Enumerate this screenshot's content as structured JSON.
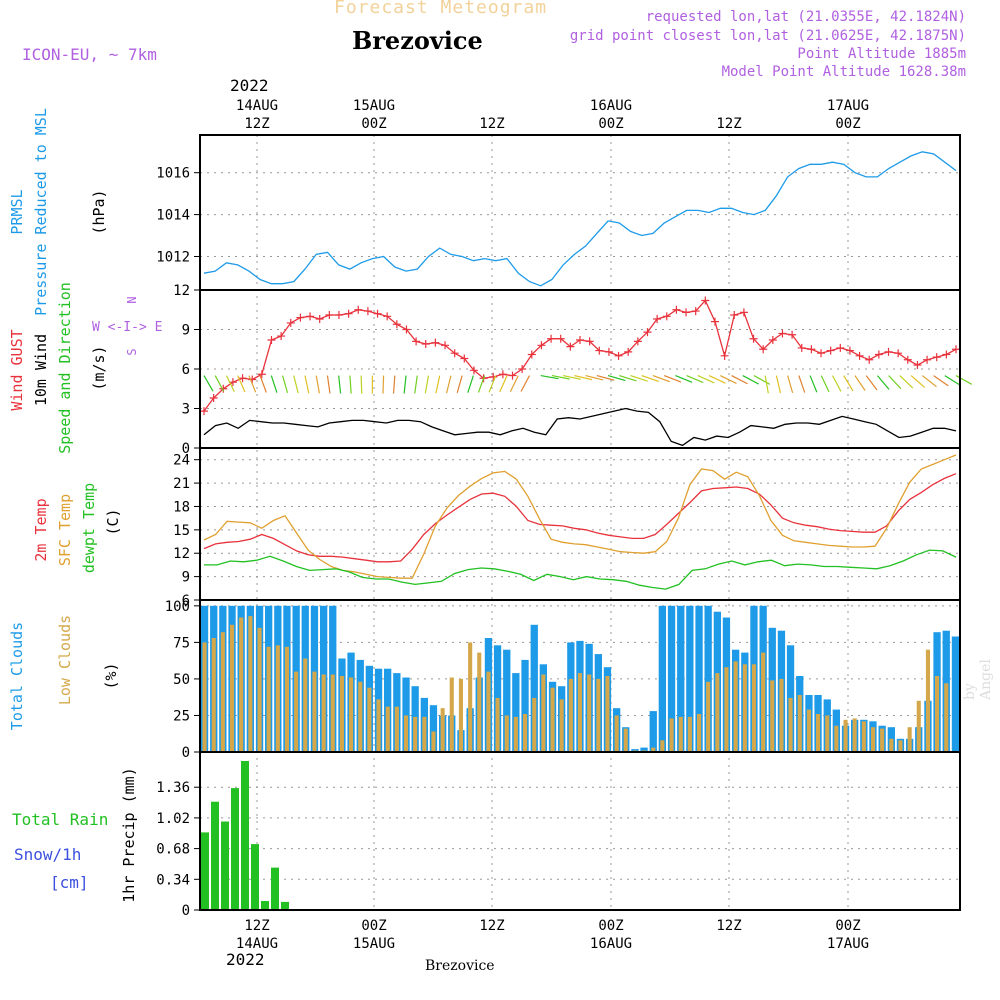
{
  "header": {
    "title_faded": "Forecast Meteogram",
    "location": "Brezovice",
    "model": "ICON-EU, ~ 7km",
    "requested": "requested lon,lat (21.0355E, 42.1824N)",
    "gridpoint": "grid point closest lon,lat (21.0625E, 42.1875N)",
    "point_alt": "Point Altitude 1885m",
    "model_alt": "Model Point Altitude 1628.38m",
    "watermark": "by Angel",
    "bottom_location": "Brezovice"
  },
  "time_axis": {
    "year": "2022",
    "top_labels": [
      {
        "date": "14AUG",
        "hour": "12Z"
      },
      {
        "date": "15AUG",
        "hour": "00Z"
      },
      {
        "date": "",
        "hour": "12Z"
      },
      {
        "date": "16AUG",
        "hour": "00Z"
      },
      {
        "date": "",
        "hour": "12Z"
      },
      {
        "date": "17AUG",
        "hour": "00Z"
      }
    ],
    "bottom_labels": [
      {
        "hour": "12Z",
        "date": "14AUG"
      },
      {
        "hour": "00Z",
        "date": "15AUG"
      },
      {
        "hour": "12Z",
        "date": ""
      },
      {
        "hour": "00Z",
        "date": "16AUG"
      },
      {
        "hour": "12Z",
        "date": ""
      },
      {
        "hour": "00Z",
        "date": "17AUG"
      }
    ]
  },
  "panel_labels": {
    "pressure": {
      "line1": "PRMSL",
      "line2": "Pressure Reduced to MSL",
      "unit": "(hPa)",
      "color": "#1e9be8"
    },
    "wind": {
      "gust": "Wind GUST",
      "wind": "10m Wind",
      "dir": "Speed and Direction",
      "unit": "(m/s)",
      "compass_we": "W <-I-> E",
      "compass_n": "N",
      "compass_s": "S",
      "gust_color": "#e8323c",
      "dir_color": "#22c022",
      "compass_color": "#b060e0"
    },
    "temp": {
      "t2m": "2m Temp",
      "sfc": "SFC Temp",
      "dew": "dewpt Temp",
      "unit": "(C)",
      "t2m_color": "#e8323c",
      "sfc_color": "#e0a030",
      "dew_color": "#22c022"
    },
    "clouds": {
      "total": "Total Clouds",
      "low": "Low Clouds",
      "unit": "(%)",
      "total_color": "#1e9be8",
      "low_color": "#d4a84a"
    },
    "precip": {
      "rain": "Total  Rain",
      "snow": "Snow/1h",
      "cm": "[cm]",
      "unit": "1hr Precip (mm)",
      "rain_color": "#22c022",
      "snow_color": "#3c50e0"
    }
  },
  "chart_data": [
    {
      "type": "line",
      "name": "PRMSL",
      "ylim": [
        1010.4,
        1017.8
      ],
      "yticks": [
        "1012",
        "1014",
        "1016"
      ],
      "ytick_values": [
        1012,
        1014,
        1016
      ],
      "series": [
        {
          "name": "PRMSL",
          "color": "#1e9be8",
          "values": [
            1011.2,
            1011.3,
            1011.7,
            1011.6,
            1011.3,
            1010.9,
            1010.7,
            1010.7,
            1010.8,
            1011.4,
            1012.1,
            1012.2,
            1011.6,
            1011.4,
            1011.7,
            1011.9,
            1012.0,
            1011.5,
            1011.3,
            1011.4,
            1012.0,
            1012.4,
            1012.1,
            1012.0,
            1011.8,
            1011.9,
            1011.8,
            1011.9,
            1011.2,
            1010.8,
            1010.6,
            1010.9,
            1011.6,
            1012.1,
            1012.5,
            1013.1,
            1013.7,
            1013.6,
            1013.2,
            1013.0,
            1013.1,
            1013.6,
            1013.9,
            1014.2,
            1014.2,
            1014.1,
            1014.3,
            1014.3,
            1014.1,
            1014.0,
            1014.2,
            1014.9,
            1015.8,
            1016.2,
            1016.4,
            1016.4,
            1016.5,
            1016.4,
            1016.0,
            1015.8,
            1015.8,
            1016.2,
            1016.5,
            1016.8,
            1017.0,
            1016.9,
            1016.5,
            1016.1
          ]
        }
      ]
    },
    {
      "type": "line",
      "name": "Wind",
      "ylim": [
        0,
        12
      ],
      "yticks": [
        "0",
        "3",
        "6",
        "9",
        "12"
      ],
      "ytick_values": [
        0,
        3,
        6,
        9,
        12
      ],
      "series": [
        {
          "name": "Wind GUST",
          "color": "#e8323c",
          "values": [
            2.8,
            3.8,
            4.5,
            5.0,
            5.3,
            5.2,
            5.6,
            8.2,
            8.5,
            9.5,
            9.9,
            10.0,
            9.8,
            10.1,
            10.1,
            10.2,
            10.5,
            10.4,
            10.2,
            10.0,
            9.4,
            9.0,
            8.1,
            7.9,
            8.0,
            7.8,
            7.2,
            6.8,
            5.9,
            5.3,
            5.4,
            5.6,
            5.5,
            6.0,
            7.1,
            7.8,
            8.3,
            8.3,
            7.7,
            8.2,
            8.1,
            7.4,
            7.3,
            7.0,
            7.3,
            8.1,
            8.8,
            9.8,
            10.0,
            10.5,
            10.3,
            10.4,
            11.2,
            9.6,
            7.0,
            10.1,
            10.3,
            8.3,
            7.5,
            8.2,
            8.7,
            8.6,
            7.6,
            7.5,
            7.2,
            7.4,
            7.6,
            7.4,
            7.0,
            6.7,
            7.1,
            7.3,
            7.2,
            6.7,
            6.3,
            6.7,
            6.9,
            7.1,
            7.5
          ]
        },
        {
          "name": "10m Wind",
          "color": "#000000",
          "values": [
            1.0,
            1.7,
            1.9,
            1.5,
            2.1,
            2.0,
            1.9,
            1.9,
            1.8,
            1.7,
            1.6,
            1.9,
            2.0,
            2.1,
            2.1,
            2.0,
            1.9,
            2.1,
            2.1,
            2.0,
            1.6,
            1.3,
            1.0,
            1.1,
            1.2,
            1.2,
            1.0,
            1.3,
            1.5,
            1.2,
            1.0,
            2.2,
            2.3,
            2.2,
            2.4,
            2.6,
            2.8,
            3.0,
            2.8,
            2.7,
            2.0,
            0.5,
            0.2,
            0.8,
            0.6,
            0.9,
            0.8,
            1.2,
            1.7,
            1.6,
            1.5,
            1.8,
            1.9,
            1.9,
            1.8,
            2.1,
            2.4,
            2.2,
            2.0,
            1.8,
            1.3,
            0.8,
            0.9,
            1.2,
            1.5,
            1.5,
            1.3
          ]
        }
      ]
    },
    {
      "type": "line",
      "name": "Temperature",
      "ylim": [
        6,
        25.5
      ],
      "yticks": [
        "6",
        "9",
        "12",
        "15",
        "18",
        "21",
        "24"
      ],
      "ytick_values": [
        6,
        9,
        12,
        15,
        18,
        21,
        24
      ],
      "series": [
        {
          "name": "2m Temp",
          "color": "#e8323c",
          "values": [
            12.6,
            13.2,
            13.4,
            13.5,
            13.8,
            14.4,
            13.9,
            13.1,
            12.3,
            11.8,
            11.6,
            11.6,
            11.5,
            11.3,
            11.1,
            10.9,
            10.9,
            11.0,
            12.5,
            14.4,
            15.8,
            16.9,
            17.9,
            18.9,
            19.6,
            19.7,
            19.3,
            18.0,
            16.2,
            15.7,
            15.6,
            15.5,
            15.2,
            15.0,
            14.6,
            14.3,
            14.1,
            13.9,
            13.9,
            14.4,
            15.7,
            17.1,
            18.5,
            20.0,
            20.3,
            20.4,
            20.5,
            20.3,
            19.6,
            18.2,
            16.5,
            15.9,
            15.6,
            15.4,
            15.1,
            14.9,
            14.8,
            14.7,
            14.7,
            15.5,
            17.4,
            18.9,
            19.8,
            20.8,
            21.6,
            22.2
          ]
        },
        {
          "name": "SFC Temp",
          "color": "#e0a030",
          "values": [
            13.7,
            14.4,
            16.1,
            16.0,
            15.9,
            15.2,
            16.2,
            16.8,
            14.6,
            12.4,
            11.2,
            10.3,
            9.8,
            9.6,
            9.3,
            9.0,
            8.9,
            8.8,
            8.8,
            11.9,
            15.5,
            17.8,
            19.4,
            20.6,
            21.6,
            22.3,
            22.5,
            21.5,
            19.3,
            16.4,
            13.8,
            13.4,
            13.2,
            13.1,
            12.8,
            12.5,
            12.2,
            12.1,
            12.0,
            12.2,
            13.5,
            16.5,
            20.8,
            22.8,
            22.6,
            21.5,
            22.4,
            21.8,
            19.4,
            16.2,
            14.3,
            13.6,
            13.4,
            13.2,
            13.0,
            12.9,
            12.8,
            12.8,
            12.9,
            15.2,
            18.3,
            21.1,
            22.8,
            23.4,
            24.0,
            24.6
          ]
        },
        {
          "name": "dewpt Temp",
          "color": "#22c022",
          "values": [
            10.5,
            10.5,
            11.0,
            10.9,
            11.1,
            11.6,
            11.0,
            10.3,
            9.8,
            9.9,
            10.0,
            9.6,
            8.9,
            8.7,
            8.7,
            8.3,
            8.0,
            8.2,
            8.4,
            9.4,
            9.9,
            10.1,
            10.0,
            9.7,
            9.3,
            8.5,
            9.3,
            9.0,
            8.6,
            9.0,
            8.7,
            8.6,
            8.4,
            7.9,
            7.6,
            7.4,
            8.0,
            9.8,
            10.0,
            10.6,
            11.0,
            10.5,
            10.9,
            11.1,
            10.4,
            10.6,
            10.5,
            10.3,
            10.3,
            10.2,
            10.1,
            10.0,
            10.4,
            11.0,
            11.8,
            12.4,
            12.3,
            11.5
          ]
        }
      ]
    },
    {
      "type": "bar",
      "name": "Clouds",
      "ylim": [
        0,
        104
      ],
      "yticks": [
        "0",
        "25",
        "50",
        "75",
        "100"
      ],
      "ytick_values": [
        0,
        25,
        50,
        75,
        100
      ],
      "series": [
        {
          "name": "Total Clouds",
          "color": "#1e9be8",
          "values": [
            100,
            100,
            100,
            100,
            100,
            100,
            100,
            100,
            100,
            100,
            100,
            100,
            100,
            100,
            100,
            64,
            68,
            63,
            59,
            57,
            57,
            54,
            51,
            45,
            37,
            32,
            25,
            25,
            15,
            30,
            51,
            78,
            73,
            70,
            54,
            63,
            87,
            60,
            48,
            45,
            75,
            76,
            74,
            67,
            58,
            30,
            17,
            2,
            3,
            28,
            100,
            100,
            100,
            100,
            100,
            100,
            96,
            92,
            70,
            68,
            100,
            100,
            85,
            83,
            73,
            52,
            39,
            39,
            36,
            29,
            18,
            22,
            22,
            21,
            18,
            17,
            9,
            9,
            17,
            35,
            82,
            83,
            79
          ]
        },
        {
          "name": "Low Clouds",
          "color": "#d4a84a",
          "values": [
            75,
            78,
            82,
            87,
            92,
            93,
            85,
            72,
            73,
            72,
            55,
            64,
            55,
            53,
            53,
            52,
            51,
            48,
            44,
            36,
            31,
            31,
            25,
            24,
            24,
            14,
            30,
            51,
            50,
            75,
            68,
            55,
            37,
            25,
            24,
            26,
            37,
            53,
            44,
            36,
            50,
            54,
            53,
            50,
            52,
            25,
            16,
            1,
            1,
            3,
            8,
            23,
            24,
            24,
            26,
            48,
            54,
            58,
            62,
            60,
            60,
            68,
            49,
            50,
            37,
            39,
            29,
            26,
            25,
            18,
            22,
            23,
            21,
            17,
            16,
            9,
            8,
            17,
            35,
            70,
            52,
            47
          ]
        }
      ]
    },
    {
      "type": "bar",
      "name": "Precipitation",
      "ylim": [
        0,
        1.75
      ],
      "yticks": [
        "0",
        "0.34",
        "0.68",
        "1.02",
        "1.36"
      ],
      "ytick_values": [
        0,
        0.34,
        0.68,
        1.02,
        1.36
      ],
      "series": [
        {
          "name": "Total Rain",
          "color": "#22c022",
          "values": [
            0.86,
            1.2,
            0.98,
            1.35,
            1.65,
            0.73,
            0.1,
            0.47,
            0.09,
            0,
            0,
            0,
            0,
            0,
            0,
            0,
            0,
            0,
            0,
            0,
            0,
            0,
            0,
            0,
            0,
            0,
            0,
            0,
            0,
            0,
            0,
            0,
            0,
            0,
            0,
            0,
            0,
            0,
            0,
            0,
            0,
            0,
            0,
            0,
            0,
            0,
            0,
            0,
            0,
            0,
            0,
            0,
            0,
            0,
            0,
            0,
            0,
            0,
            0,
            0,
            0,
            0,
            0,
            0,
            0,
            0,
            0,
            0,
            0,
            0,
            0,
            0,
            0,
            0,
            0,
            0
          ]
        }
      ]
    }
  ]
}
